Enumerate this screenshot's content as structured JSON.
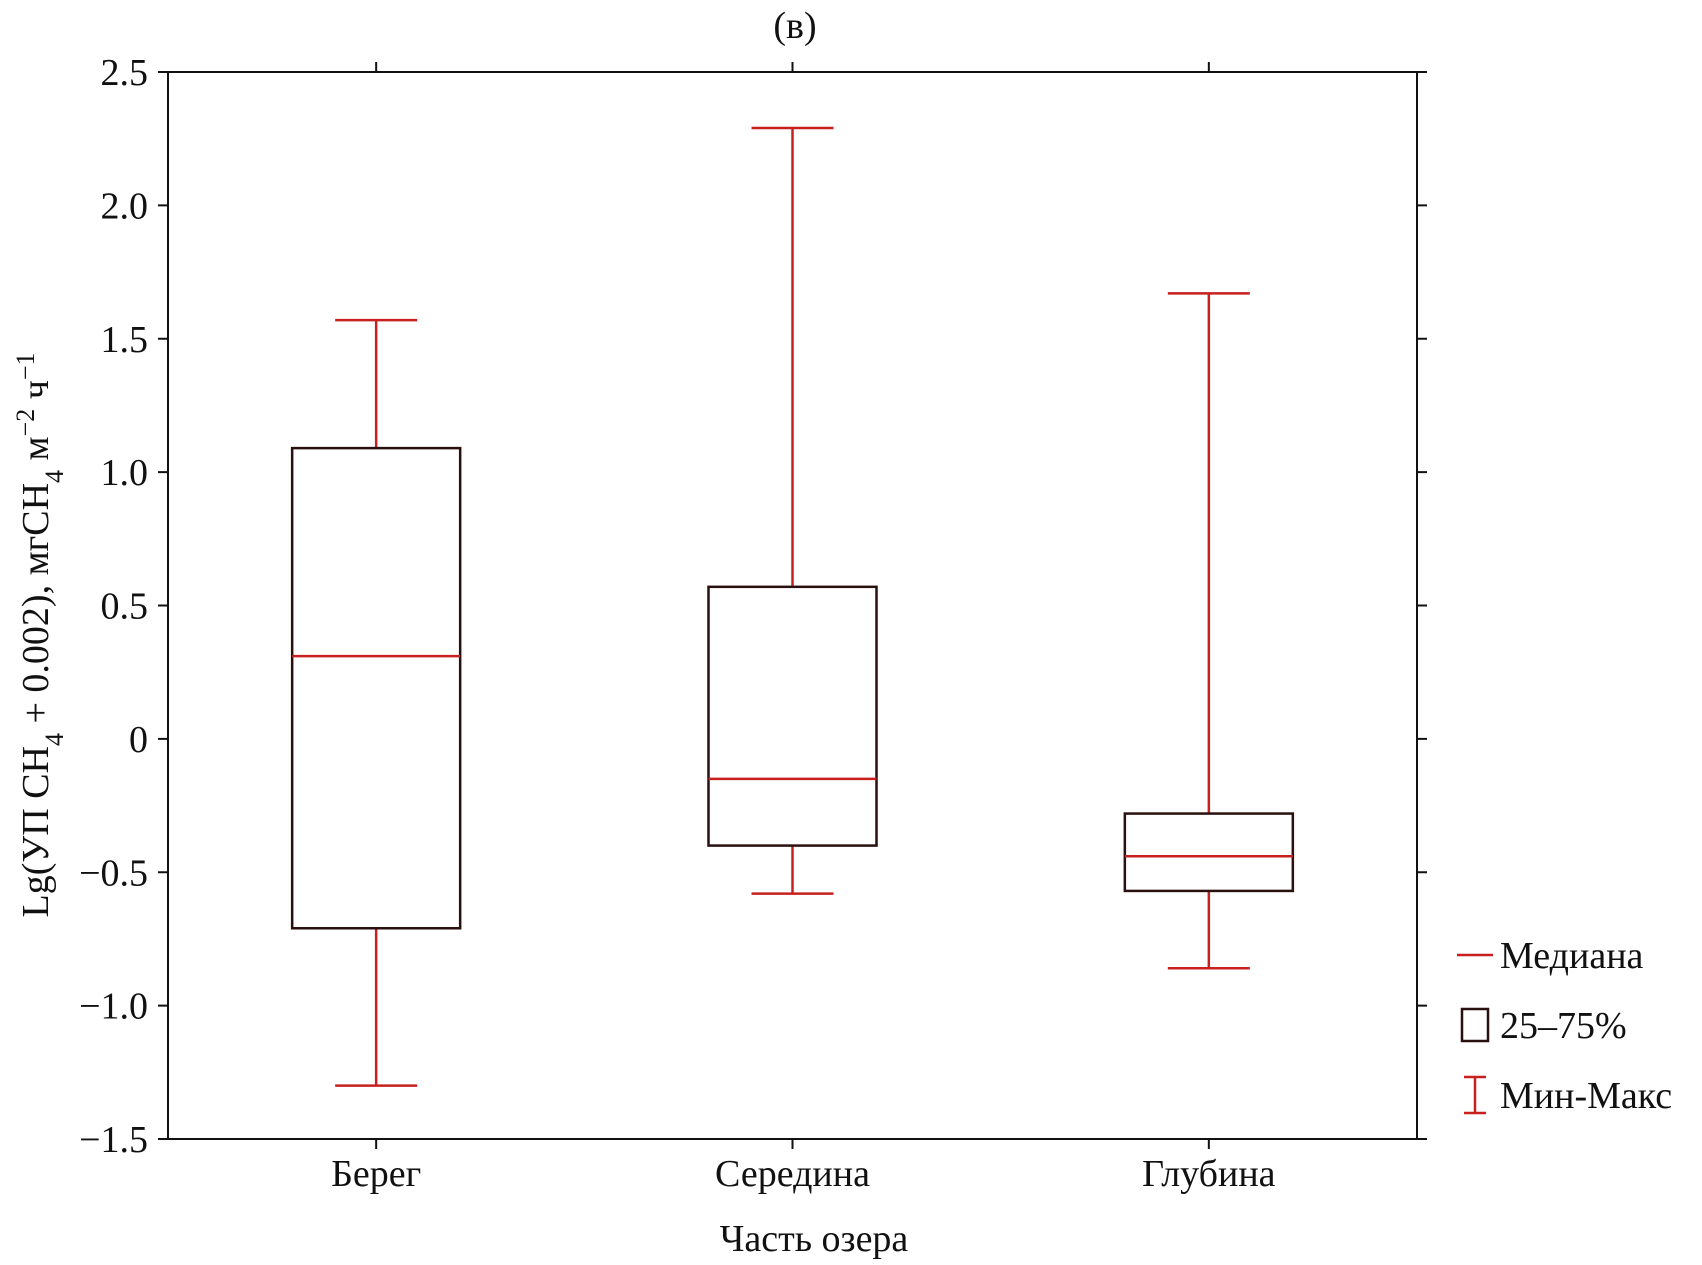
{
  "chart_data": {
    "type": "boxplot",
    "title": "(в)",
    "xlabel": "Часть озера",
    "ylabel": {
      "prefix": "Lg(УП CH",
      "sub1": "4",
      "mid": " + 0.002), мгCH",
      "sub2": "4",
      "mid2": " м",
      "sup1": "−2",
      "mid3": " ч",
      "sup2": "−1"
    },
    "ylim": [
      -1.5,
      2.5
    ],
    "yticks": [
      {
        "value": 2.5,
        "label": "2.5"
      },
      {
        "value": 2.0,
        "label": "2.0"
      },
      {
        "value": 1.5,
        "label": "1.5"
      },
      {
        "value": 1.0,
        "label": "1.0"
      },
      {
        "value": 0.5,
        "label": "0.5"
      },
      {
        "value": 0,
        "label": "0"
      },
      {
        "value": -0.5,
        "label": "−0.5"
      },
      {
        "value": -1.0,
        "label": "−1.0"
      },
      {
        "value": -1.5,
        "label": "−1.5"
      }
    ],
    "categories": [
      "Берег",
      "Середина",
      "Глубина"
    ],
    "boxes": [
      {
        "category": "Берег",
        "min": -1.3,
        "q1": -0.71,
        "median": 0.31,
        "q3": 1.09,
        "max": 1.57
      },
      {
        "category": "Середина",
        "min": -0.58,
        "q1": -0.4,
        "median": -0.15,
        "q3": 0.57,
        "max": 2.29
      },
      {
        "category": "Глубина",
        "min": -0.86,
        "q1": -0.57,
        "median": -0.44,
        "q3": -0.28,
        "max": 1.67
      }
    ],
    "legend": {
      "position": "right",
      "items": [
        {
          "kind": "median",
          "label": "Медиана"
        },
        {
          "kind": "box",
          "label": "25–75%"
        },
        {
          "kind": "whisker",
          "label": "Мин-Макс"
        }
      ]
    },
    "grid": false,
    "colors": {
      "whisker": "#c8201e",
      "median": "#c8201e",
      "box": "#2a0f0f",
      "axis": "#111111"
    }
  }
}
